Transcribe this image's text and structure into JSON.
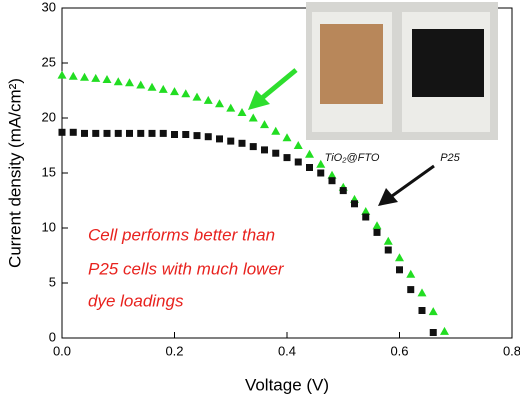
{
  "chart_data": {
    "type": "scatter",
    "xlabel": "Voltage (V)",
    "ylabel": "Current density (mA/cm²)",
    "xlim": [
      0,
      0.8
    ],
    "xticks": [
      {
        "value": 0,
        "label": "0.0"
      },
      0.2,
      0.4,
      0.6,
      0.8
    ],
    "ylim": [
      0,
      30
    ],
    "yticks": [
      0,
      5,
      10,
      15,
      20,
      25,
      30
    ],
    "annotations": [
      "Cell performs better than",
      "P25 cells with much lower",
      "dye loadings",
      "TiO₂@FTO",
      "P25"
    ],
    "series": [
      {
        "color": "#22dd22",
        "marker": "triangle",
        "x": [
          0,
          0.02,
          0.04,
          0.06,
          0.08,
          0.1,
          0.12,
          0.14,
          0.16,
          0.18,
          0.2,
          0.22,
          0.24,
          0.26,
          0.28,
          0.3,
          0.32,
          0.34,
          0.36,
          0.38,
          0.4,
          0.42,
          0.44,
          0.46,
          0.48,
          0.5,
          0.52,
          0.54,
          0.56,
          0.58,
          0.6,
          0.62,
          0.64,
          0.66,
          0.68
        ],
        "values": [
          23.9,
          23.8,
          23.7,
          23.6,
          23.5,
          23.3,
          23.2,
          23.0,
          22.8,
          22.6,
          22.4,
          22.2,
          21.9,
          21.6,
          21.3,
          20.9,
          20.5,
          20.0,
          19.4,
          18.8,
          18.2,
          17.5,
          16.7,
          15.8,
          14.8,
          13.7,
          12.6,
          11.5,
          10.2,
          8.8,
          7.3,
          5.8,
          4.1,
          2.4,
          0.6
        ]
      },
      {
        "color": "#111111",
        "marker": "square",
        "x": [
          0,
          0.02,
          0.04,
          0.06,
          0.08,
          0.1,
          0.12,
          0.14,
          0.16,
          0.18,
          0.2,
          0.22,
          0.24,
          0.26,
          0.28,
          0.3,
          0.32,
          0.34,
          0.36,
          0.38,
          0.4,
          0.42,
          0.44,
          0.46,
          0.48,
          0.5,
          0.52,
          0.54,
          0.56,
          0.58,
          0.6,
          0.62,
          0.64,
          0.66
        ],
        "values": [
          18.7,
          18.7,
          18.6,
          18.6,
          18.6,
          18.6,
          18.6,
          18.6,
          18.6,
          18.6,
          18.5,
          18.5,
          18.4,
          18.3,
          18.1,
          17.9,
          17.7,
          17.4,
          17.1,
          16.8,
          16.4,
          16.0,
          15.5,
          15.0,
          14.3,
          13.4,
          12.2,
          11.0,
          9.6,
          8.0,
          6.2,
          4.4,
          2.5,
          0.5
        ]
      }
    ]
  }
}
